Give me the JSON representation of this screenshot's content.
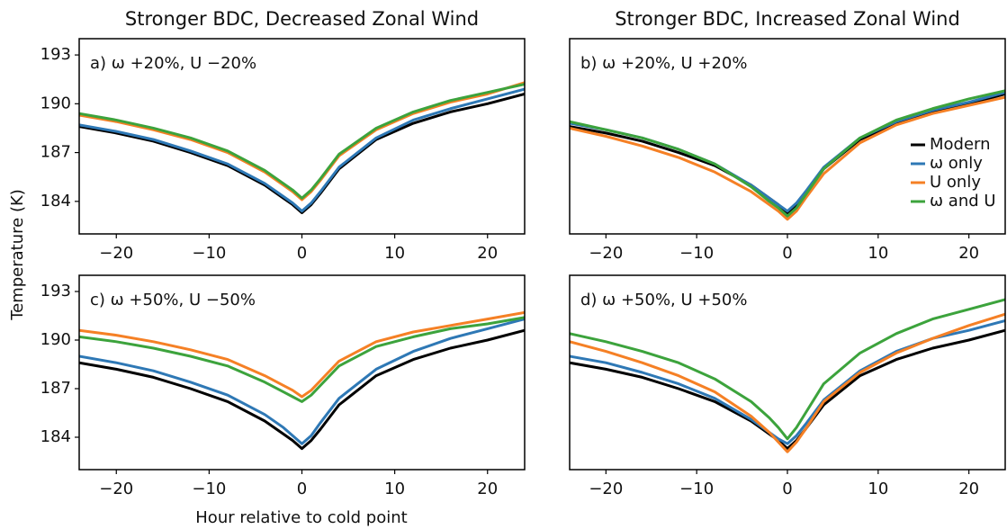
{
  "xlabel": "Hour relative to cold point",
  "ylabel": "Temperature (K)",
  "chart_data": [
    {
      "type": "line",
      "title": "Stronger BDC, Decreased Zonal Wind",
      "annotation": "a) ω +20%, U −20%",
      "x": [
        -24,
        -20,
        -16,
        -12,
        -8,
        -4,
        -2,
        -1,
        0,
        1,
        2,
        4,
        8,
        12,
        16,
        20,
        24
      ],
      "xlim": [
        -24,
        24
      ],
      "ylim": [
        182,
        194
      ],
      "xticks": [
        {
          "value": -20,
          "label": "−20"
        },
        {
          "value": -10,
          "label": "−10"
        },
        0,
        10,
        20
      ],
      "yticks": [
        184,
        187,
        190,
        193
      ],
      "series": [
        {
          "color": "#f58025",
          "values": [
            189.3,
            188.9,
            188.4,
            187.8,
            187.0,
            185.8,
            185.0,
            184.6,
            184.1,
            184.6,
            185.3,
            186.8,
            188.4,
            189.4,
            190.1,
            190.6,
            191.3
          ]
        },
        {
          "color": "#3ca33c",
          "values": [
            189.4,
            189.0,
            188.5,
            187.9,
            187.1,
            185.9,
            185.1,
            184.7,
            184.2,
            184.7,
            185.4,
            186.9,
            188.5,
            189.5,
            190.2,
            190.7,
            191.2
          ]
        },
        {
          "color": "#000000",
          "values": [
            188.6,
            188.2,
            187.7,
            187.0,
            186.2,
            185.0,
            184.2,
            183.8,
            183.3,
            183.8,
            184.5,
            186.0,
            187.8,
            188.8,
            189.5,
            190.0,
            190.6
          ]
        },
        {
          "color": "#2e78b5",
          "values": [
            188.7,
            188.3,
            187.8,
            187.1,
            186.3,
            185.1,
            184.3,
            183.9,
            183.4,
            183.9,
            184.6,
            186.1,
            187.9,
            189.0,
            189.7,
            190.3,
            190.9
          ]
        }
      ]
    },
    {
      "type": "line",
      "title": "Stronger BDC, Increased Zonal Wind",
      "annotation": "b) ω +20%, U +20%",
      "x": [
        -24,
        -20,
        -16,
        -12,
        -8,
        -4,
        -2,
        -1,
        0,
        1,
        2,
        4,
        8,
        12,
        16,
        20,
        24
      ],
      "xlim": [
        -24,
        24
      ],
      "ylim": [
        182,
        194
      ],
      "xticks": [
        {
          "value": -20,
          "label": "−20"
        },
        {
          "value": -10,
          "label": "−10"
        },
        0,
        10,
        20
      ],
      "legend": "right",
      "series": [
        {
          "name": "Modern",
          "color": "#000000",
          "values": [
            188.6,
            188.2,
            187.7,
            187.0,
            186.2,
            185.0,
            184.2,
            183.8,
            183.3,
            183.8,
            184.5,
            186.0,
            187.8,
            188.8,
            189.5,
            190.0,
            190.6
          ]
        },
        {
          "name": "ω only",
          "color": "#2e78b5",
          "values": [
            188.8,
            188.4,
            187.9,
            187.2,
            186.3,
            185.0,
            184.2,
            183.8,
            183.4,
            183.9,
            184.6,
            186.1,
            187.9,
            188.9,
            189.6,
            190.1,
            190.7
          ]
        },
        {
          "name": "U only",
          "color": "#f58025",
          "values": [
            188.5,
            188.0,
            187.4,
            186.7,
            185.8,
            184.6,
            183.8,
            183.4,
            182.9,
            183.4,
            184.2,
            185.7,
            187.6,
            188.7,
            189.4,
            189.9,
            190.4
          ]
        },
        {
          "name": "ω and U",
          "color": "#3ca33c",
          "values": [
            188.9,
            188.4,
            187.9,
            187.2,
            186.3,
            184.9,
            184.0,
            183.6,
            183.1,
            183.6,
            184.4,
            186.0,
            187.9,
            189.0,
            189.7,
            190.3,
            190.8
          ]
        }
      ]
    },
    {
      "type": "line",
      "annotation": "c) ω +50%, U −50%",
      "x": [
        -24,
        -20,
        -16,
        -12,
        -8,
        -4,
        -2,
        -1,
        0,
        1,
        2,
        4,
        8,
        12,
        16,
        20,
        24
      ],
      "xlim": [
        -24,
        24
      ],
      "ylim": [
        182,
        194
      ],
      "xticks": [
        {
          "value": -20,
          "label": "−20"
        },
        {
          "value": -10,
          "label": "−10"
        },
        0,
        10,
        20
      ],
      "yticks": [
        184,
        187,
        190,
        193
      ],
      "series": [
        {
          "color": "#000000",
          "values": [
            188.6,
            188.2,
            187.7,
            187.0,
            186.2,
            185.0,
            184.2,
            183.8,
            183.3,
            183.8,
            184.5,
            186.0,
            187.8,
            188.8,
            189.5,
            190.0,
            190.6
          ]
        },
        {
          "color": "#2e78b5",
          "values": [
            189.0,
            188.6,
            188.1,
            187.4,
            186.6,
            185.4,
            184.6,
            184.1,
            183.6,
            184.1,
            184.9,
            186.4,
            188.2,
            189.3,
            190.1,
            190.7,
            191.3
          ]
        },
        {
          "color": "#f58025",
          "values": [
            190.6,
            190.3,
            189.9,
            189.4,
            188.8,
            187.8,
            187.2,
            186.9,
            186.5,
            186.9,
            187.5,
            188.7,
            189.9,
            190.5,
            190.9,
            191.3,
            191.7
          ]
        },
        {
          "color": "#3ca33c",
          "values": [
            190.2,
            189.9,
            189.5,
            189.0,
            188.4,
            187.4,
            186.8,
            186.5,
            186.2,
            186.6,
            187.2,
            188.4,
            189.6,
            190.2,
            190.7,
            191.0,
            191.4
          ]
        }
      ]
    },
    {
      "type": "line",
      "annotation": "d) ω +50%, U +50%",
      "x": [
        -24,
        -20,
        -16,
        -12,
        -8,
        -4,
        -2,
        -1,
        0,
        1,
        2,
        4,
        8,
        12,
        16,
        20,
        24
      ],
      "xlim": [
        -24,
        24
      ],
      "ylim": [
        182,
        194
      ],
      "xticks": [
        {
          "value": -20,
          "label": "−20"
        },
        {
          "value": -10,
          "label": "−10"
        },
        0,
        10,
        20
      ],
      "series": [
        {
          "color": "#000000",
          "values": [
            188.6,
            188.2,
            187.7,
            187.0,
            186.2,
            185.0,
            184.2,
            183.8,
            183.3,
            183.8,
            184.5,
            186.0,
            187.8,
            188.8,
            189.5,
            190.0,
            190.6
          ]
        },
        {
          "color": "#2e78b5",
          "values": [
            189.0,
            188.6,
            188.0,
            187.3,
            186.4,
            185.1,
            184.3,
            183.9,
            183.6,
            184.1,
            184.8,
            186.3,
            188.1,
            189.3,
            190.1,
            190.6,
            191.2
          ]
        },
        {
          "color": "#f58025",
          "values": [
            189.9,
            189.3,
            188.6,
            187.8,
            186.8,
            185.3,
            184.3,
            183.7,
            183.1,
            183.7,
            184.5,
            186.2,
            188.0,
            189.2,
            190.1,
            190.9,
            191.6
          ]
        },
        {
          "color": "#3ca33c",
          "values": [
            190.4,
            189.9,
            189.3,
            188.6,
            187.6,
            186.2,
            185.2,
            184.6,
            183.9,
            184.6,
            185.5,
            187.3,
            189.2,
            190.4,
            191.3,
            191.9,
            192.5
          ]
        }
      ]
    }
  ]
}
